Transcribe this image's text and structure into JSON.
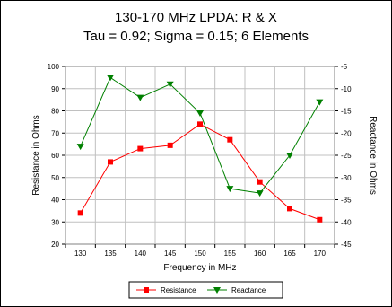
{
  "chart_data": {
    "type": "line",
    "title": "130-170 MHz LPDA:  R & X",
    "subtitle": "Tau = 0.92; Sigma = 0.15; 6 Elements",
    "xlabel": "Frequency in MHz",
    "ylabel_left": "Resistance in Ohms",
    "ylabel_right": "Reactance in Ohms",
    "x": [
      130,
      135,
      140,
      145,
      150,
      155,
      160,
      165,
      170
    ],
    "ylim_left": [
      20,
      100
    ],
    "ylim_right": [
      -45,
      -5
    ],
    "yticks_left": [
      20,
      30,
      40,
      50,
      60,
      70,
      80,
      90,
      100
    ],
    "yticks_right": [
      -45,
      -40,
      -35,
      -30,
      -25,
      -20,
      -15,
      -10,
      -5
    ],
    "grid": true,
    "legend_position": "bottom",
    "series": [
      {
        "name": "Resistance",
        "axis": "left",
        "color": "#ff0000",
        "marker": "square",
        "values": [
          34,
          57,
          63,
          64.5,
          74,
          67,
          48,
          36,
          31
        ]
      },
      {
        "name": "Reactance",
        "axis": "right",
        "color": "#008000",
        "marker": "triangle-down",
        "values": [
          -23,
          -7.5,
          -12,
          -9,
          -15.5,
          -32.5,
          -33.5,
          -25,
          -13
        ]
      }
    ]
  }
}
